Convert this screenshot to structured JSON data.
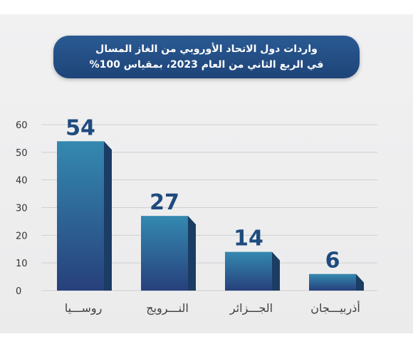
{
  "chart_data": {
    "type": "bar",
    "title_line1": "واردات دول الاتحاد الأوروبي من الغاز المسال",
    "title_line2": "في الربع الثاني من العام 2023، بمقياس 100%",
    "categories": [
      "روســـيا",
      "النـــرويج",
      "الجـــزائر",
      "أذربيـــجان"
    ],
    "values": [
      54,
      27,
      14,
      6
    ],
    "ylim": [
      0,
      60
    ],
    "yticks": [
      "0",
      "10",
      "20",
      "30",
      "40",
      "50",
      "60"
    ],
    "grid": true,
    "colors": {
      "bar_front_top": "#3489b0",
      "bar_front_bottom": "#27407c",
      "bar_side": "#1b3c63",
      "value_label": "#1f4b7e",
      "category_label": "#404040",
      "grid": "#cfcfd2"
    }
  }
}
